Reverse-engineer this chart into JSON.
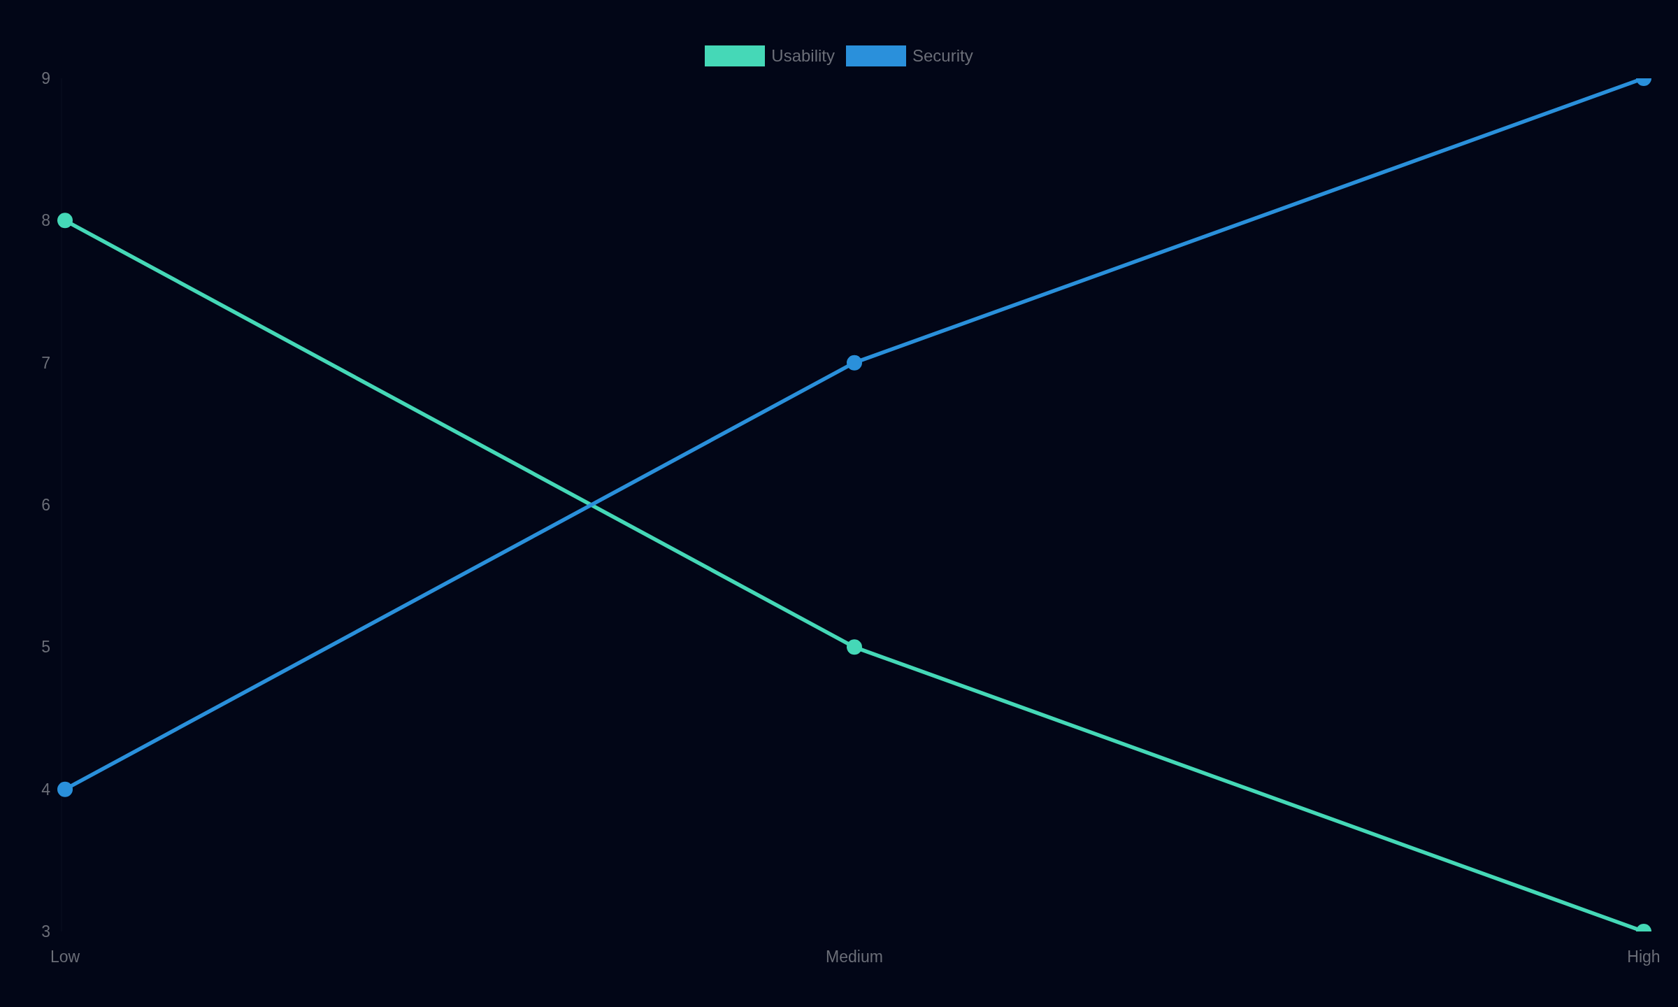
{
  "chart_data": {
    "type": "line",
    "categories": [
      "Low",
      "Medium",
      "High"
    ],
    "series": [
      {
        "name": "Usability",
        "color": "#45d8b7",
        "values": [
          8,
          5,
          3
        ]
      },
      {
        "name": "Security",
        "color": "#2a90db",
        "values": [
          4,
          7,
          9
        ]
      }
    ],
    "ylim": [
      3,
      9
    ],
    "yticks": [
      3,
      4,
      5,
      6,
      7,
      8,
      9
    ],
    "legend": "top",
    "marker": "circle",
    "line_style": "solid"
  }
}
